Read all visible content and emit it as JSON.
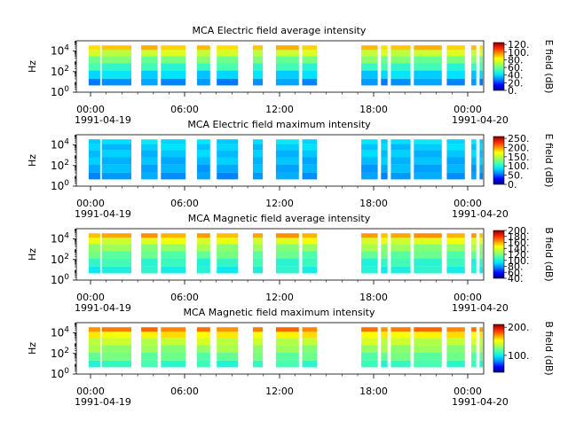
{
  "colors": {
    "jet": [
      "#00007f",
      "#0000ff",
      "#0080ff",
      "#00e5ff",
      "#4cffaa",
      "#aaff4c",
      "#ffff00",
      "#ff8c00",
      "#ff2000",
      "#7f0000"
    ]
  },
  "chart_data": [
    {
      "type": "heatmap",
      "title": "MCA  Electric field average intensity",
      "ylabel": "Hz",
      "yscale": "log",
      "ylim": [
        1,
        100000
      ],
      "y_ticks": [
        "10^0",
        "10^2",
        "10^4"
      ],
      "x_ticks": [
        "00:00",
        "06:00",
        "12:00",
        "18:00",
        "00:00"
      ],
      "x_dates": [
        "1991-04-19",
        "1991-04-20"
      ],
      "colorbar": {
        "label": "E field (dB)",
        "range": [
          0,
          125
        ],
        "ticks": [
          "0.",
          "20.",
          "40.",
          "60.",
          "80.",
          "100.",
          "120."
        ]
      },
      "data_intervals_hours": [
        [
          0.0,
          0.7
        ],
        [
          0.8,
          2.6
        ],
        [
          3.2,
          4.2
        ],
        [
          4.4,
          5.9
        ],
        [
          6.6,
          7.4
        ],
        [
          7.8,
          9.1
        ],
        [
          10.0,
          10.6
        ],
        [
          11.4,
          12.8
        ],
        [
          13.0,
          13.9
        ],
        [
          16.6,
          17.6
        ],
        [
          17.8,
          18.2
        ],
        [
          18.4,
          19.6
        ],
        [
          19.8,
          21.5
        ],
        [
          21.8,
          22.9
        ],
        [
          23.3,
          23.6
        ],
        [
          23.8,
          24.0
        ]
      ],
      "band_levels_db": [
        90,
        75,
        62,
        52,
        40,
        30
      ]
    },
    {
      "type": "heatmap",
      "title": "MCA  Electric field maximum intensity",
      "ylabel": "Hz",
      "yscale": "log",
      "ylim": [
        1,
        100000
      ],
      "y_ticks": [
        "10^0",
        "10^2",
        "10^4"
      ],
      "x_ticks": [
        "00:00",
        "06:00",
        "12:00",
        "18:00",
        "00:00"
      ],
      "x_dates": [
        "1991-04-19",
        "1991-04-20"
      ],
      "colorbar": {
        "label": "E field (dB)",
        "range": [
          0,
          260
        ],
        "ticks": [
          "0.",
          "50.",
          "100.",
          "150.",
          "200.",
          "250."
        ]
      },
      "data_intervals_hours": [
        [
          0.0,
          0.7
        ],
        [
          0.8,
          2.6
        ],
        [
          3.2,
          4.2
        ],
        [
          4.4,
          5.9
        ],
        [
          6.6,
          7.4
        ],
        [
          7.8,
          9.1
        ],
        [
          10.0,
          10.6
        ],
        [
          11.4,
          12.8
        ],
        [
          13.0,
          13.9
        ],
        [
          16.6,
          17.6
        ],
        [
          17.8,
          18.2
        ],
        [
          18.4,
          19.6
        ],
        [
          19.8,
          21.5
        ],
        [
          21.8,
          22.9
        ],
        [
          23.3,
          23.6
        ],
        [
          23.8,
          24.0
        ]
      ],
      "band_levels_db": [
        85,
        80,
        78,
        75,
        70,
        65
      ]
    },
    {
      "type": "heatmap",
      "title": "MCA  Magnetic field average intensity",
      "ylabel": "Hz",
      "yscale": "log",
      "ylim": [
        1,
        100000
      ],
      "y_ticks": [
        "10^0",
        "10^2",
        "10^4"
      ],
      "x_ticks": [
        "00:00",
        "06:00",
        "12:00",
        "18:00",
        "00:00"
      ],
      "x_dates": [
        "1991-04-19",
        "1991-04-20"
      ],
      "colorbar": {
        "label": "B field (dB)",
        "range": [
          40,
          200
        ],
        "ticks": [
          "40.",
          "60.",
          "80.",
          "100.",
          "120.",
          "140.",
          "160.",
          "180.",
          "200."
        ]
      },
      "data_intervals_hours": [
        [
          0.0,
          0.7
        ],
        [
          0.8,
          2.6
        ],
        [
          3.2,
          4.2
        ],
        [
          4.4,
          5.9
        ],
        [
          6.6,
          7.4
        ],
        [
          7.8,
          9.1
        ],
        [
          10.0,
          10.6
        ],
        [
          11.4,
          12.8
        ],
        [
          13.0,
          13.9
        ],
        [
          16.6,
          17.6
        ],
        [
          17.8,
          18.2
        ],
        [
          18.4,
          19.6
        ],
        [
          19.8,
          21.5
        ],
        [
          21.8,
          22.9
        ],
        [
          23.3,
          23.6
        ],
        [
          23.8,
          24.0
        ]
      ],
      "band_levels_db": [
        160,
        140,
        125,
        115,
        105,
        100
      ]
    },
    {
      "type": "heatmap",
      "title": "MCA  Magnetic field maximum intensity",
      "ylabel": "Hz",
      "yscale": "log",
      "ylim": [
        1,
        100000
      ],
      "y_ticks": [
        "10^0",
        "10^2",
        "10^4"
      ],
      "x_ticks": [
        "00:00",
        "06:00",
        "12:00",
        "18:00",
        "00:00"
      ],
      "x_dates": [
        "1991-04-19",
        "1991-04-20"
      ],
      "colorbar": {
        "label": "B field (dB)",
        "range": [
          40,
          210
        ],
        "ticks": [
          "100.",
          "200."
        ]
      },
      "data_intervals_hours": [
        [
          0.0,
          0.7
        ],
        [
          0.8,
          2.6
        ],
        [
          3.2,
          4.2
        ],
        [
          4.4,
          5.9
        ],
        [
          6.6,
          7.4
        ],
        [
          7.8,
          9.1
        ],
        [
          10.0,
          10.6
        ],
        [
          11.4,
          12.8
        ],
        [
          13.0,
          13.9
        ],
        [
          16.6,
          17.6
        ],
        [
          17.8,
          18.2
        ],
        [
          18.4,
          19.6
        ],
        [
          19.8,
          21.5
        ],
        [
          21.8,
          22.9
        ],
        [
          23.3,
          23.6
        ],
        [
          23.8,
          24.0
        ]
      ],
      "band_levels_db": [
        175,
        155,
        140,
        130,
        120,
        110
      ]
    }
  ]
}
